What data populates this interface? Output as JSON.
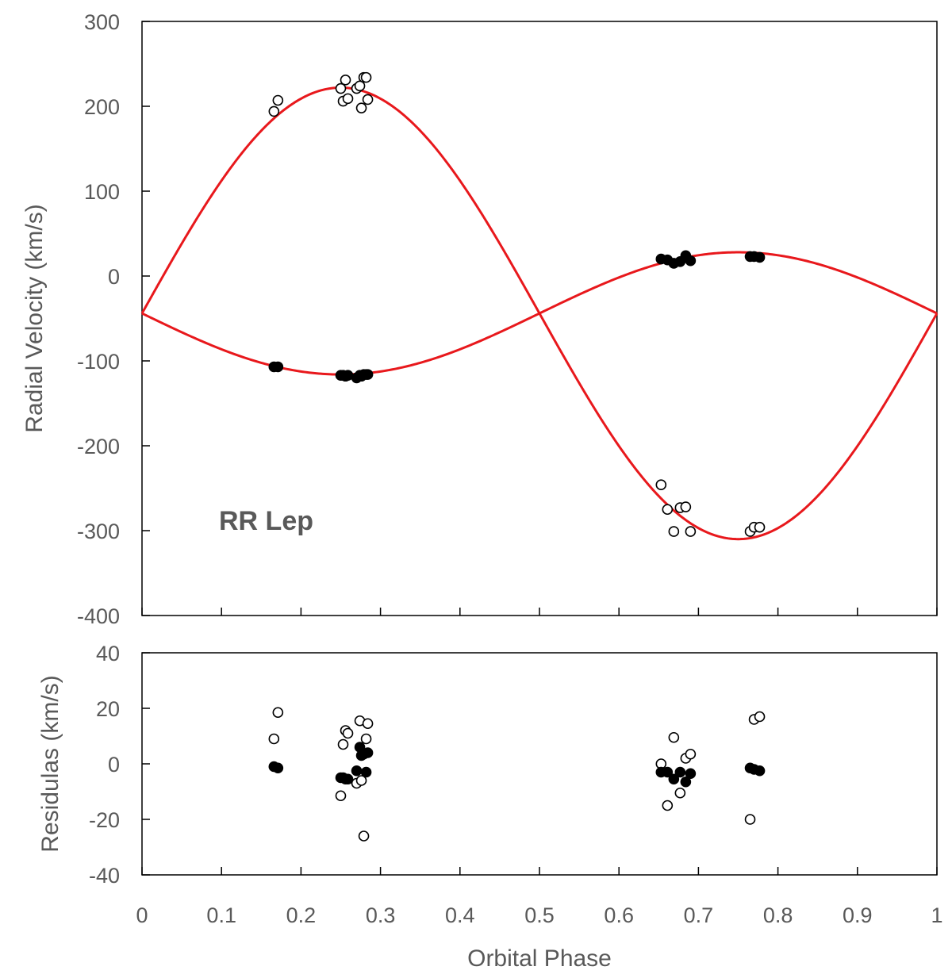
{
  "chart_data": [
    {
      "type": "scatter",
      "panel": "radial-velocity",
      "title": "",
      "annotation": "RR Lep",
      "xlabel": "",
      "ylabel": "Radial Velocity (km/s)",
      "xlim": [
        0,
        1
      ],
      "ylim": [
        -400,
        300
      ],
      "yticks": [
        -400,
        -300,
        -200,
        -100,
        0,
        100,
        200,
        300
      ],
      "ytick_labels": [
        "-400",
        "-300",
        "-200",
        "-100",
        "0",
        "100",
        "200",
        "300"
      ],
      "xticks": [
        0,
        0.1,
        0.2,
        0.3,
        0.4,
        0.5,
        0.6,
        0.7,
        0.8,
        0.9,
        1
      ],
      "grid": false,
      "curve_color": "#e8181c",
      "fit_curves": [
        {
          "gamma": -44,
          "K": 266,
          "style": "line"
        },
        {
          "gamma": -44,
          "K": -72,
          "style": "line"
        }
      ],
      "series": [
        {
          "marker": "open-circle",
          "points": [
            [
              0.166,
              194
            ],
            [
              0.171,
              207
            ],
            [
              0.25,
              221
            ],
            [
              0.253,
              206
            ],
            [
              0.256,
              231
            ],
            [
              0.259,
              209
            ],
            [
              0.27,
              221
            ],
            [
              0.274,
              224
            ],
            [
              0.276,
              198
            ],
            [
              0.279,
              234
            ],
            [
              0.282,
              234
            ],
            [
              0.284,
              208
            ],
            [
              0.653,
              -246
            ],
            [
              0.661,
              -275
            ],
            [
              0.669,
              -301
            ],
            [
              0.677,
              -273
            ],
            [
              0.684,
              -272
            ],
            [
              0.69,
              -301
            ],
            [
              0.765,
              -301
            ],
            [
              0.77,
              -296
            ],
            [
              0.777,
              -296
            ]
          ]
        },
        {
          "marker": "filled-circle",
          "points": [
            [
              0.166,
              -107
            ],
            [
              0.171,
              -107
            ],
            [
              0.25,
              -117
            ],
            [
              0.253,
              -117
            ],
            [
              0.256,
              -118
            ],
            [
              0.259,
              -117
            ],
            [
              0.27,
              -120
            ],
            [
              0.274,
              -117
            ],
            [
              0.276,
              -118
            ],
            [
              0.279,
              -116
            ],
            [
              0.282,
              -116
            ],
            [
              0.284,
              -116
            ],
            [
              0.653,
              20
            ],
            [
              0.661,
              19
            ],
            [
              0.669,
              15
            ],
            [
              0.677,
              17
            ],
            [
              0.684,
              24
            ],
            [
              0.69,
              18
            ],
            [
              0.765,
              23
            ],
            [
              0.77,
              23
            ],
            [
              0.777,
              22
            ]
          ]
        }
      ]
    },
    {
      "type": "scatter",
      "panel": "residuals",
      "title": "",
      "xlabel": "Orbital Phase",
      "ylabel": "Residulas (km/s)",
      "xlim": [
        0,
        1
      ],
      "ylim": [
        -40,
        40
      ],
      "yticks": [
        -40,
        -20,
        0,
        20,
        40
      ],
      "ytick_labels": [
        "-40",
        "-20",
        "0",
        "20",
        "40"
      ],
      "xticks": [
        0,
        0.1,
        0.2,
        0.3,
        0.4,
        0.5,
        0.6,
        0.7,
        0.8,
        0.9,
        1
      ],
      "xtick_labels": [
        "0",
        "0.1",
        "0.2",
        "0.3",
        "0.4",
        "0.5",
        "0.6",
        "0.7",
        "0.8",
        "0.9",
        "1"
      ],
      "grid": false,
      "series": [
        {
          "marker": "open-circle",
          "points": [
            [
              0.166,
              9
            ],
            [
              0.171,
              18.5
            ],
            [
              0.25,
              -11.5
            ],
            [
              0.253,
              7
            ],
            [
              0.256,
              12
            ],
            [
              0.259,
              11
            ],
            [
              0.27,
              -7
            ],
            [
              0.274,
              15.5
            ],
            [
              0.276,
              -6
            ],
            [
              0.279,
              -26
            ],
            [
              0.282,
              9
            ],
            [
              0.284,
              14.5
            ],
            [
              0.653,
              0
            ],
            [
              0.661,
              -15
            ],
            [
              0.669,
              9.5
            ],
            [
              0.677,
              -10.5
            ],
            [
              0.684,
              2
            ],
            [
              0.69,
              3.5
            ],
            [
              0.765,
              -20
            ],
            [
              0.77,
              16
            ],
            [
              0.777,
              17
            ]
          ]
        },
        {
          "marker": "filled-circle",
          "points": [
            [
              0.166,
              -1
            ],
            [
              0.171,
              -1.5
            ],
            [
              0.25,
              -5
            ],
            [
              0.253,
              -5
            ],
            [
              0.256,
              -5.5
            ],
            [
              0.259,
              -5.5
            ],
            [
              0.27,
              -2.5
            ],
            [
              0.274,
              6
            ],
            [
              0.276,
              3
            ],
            [
              0.279,
              3.5
            ],
            [
              0.282,
              -3
            ],
            [
              0.284,
              4
            ],
            [
              0.653,
              -3
            ],
            [
              0.661,
              -3
            ],
            [
              0.669,
              -5.5
            ],
            [
              0.677,
              -3
            ],
            [
              0.684,
              -6.5
            ],
            [
              0.69,
              -3.5
            ],
            [
              0.765,
              -1.5
            ],
            [
              0.77,
              -2
            ],
            [
              0.777,
              -2.5
            ]
          ]
        }
      ]
    }
  ]
}
